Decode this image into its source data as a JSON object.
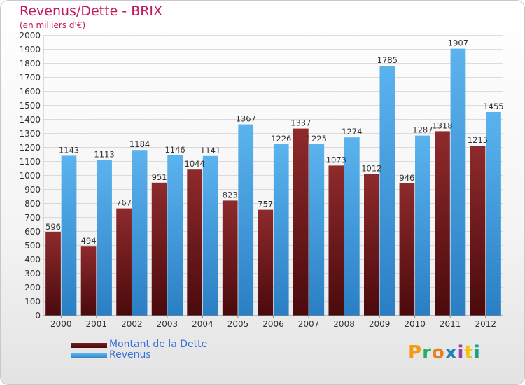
{
  "title": "Revenus/Dette - BRIX",
  "subtitle": "(en milliers d'€)",
  "colors": {
    "dette": "#7a1f22",
    "revenus": "#3a9fe6",
    "grid": "#bdbdbd",
    "text": "#333333"
  },
  "legend": {
    "dette": "Montant de la Dette",
    "revenus": "Revenus"
  },
  "logo": "Proxiti",
  "chart_data": {
    "type": "bar",
    "categories": [
      "2000",
      "2001",
      "2002",
      "2003",
      "2004",
      "2005",
      "2006",
      "2007",
      "2008",
      "2009",
      "2010",
      "2011",
      "2012"
    ],
    "series": [
      {
        "name": "Montant de la Dette",
        "values": [
          596,
          494,
          767,
          951,
          1044,
          823,
          757,
          1337,
          1073,
          1012,
          946,
          1318,
          1215
        ]
      },
      {
        "name": "Revenus",
        "values": [
          1143,
          1113,
          1184,
          1146,
          1141,
          1367,
          1226,
          1225,
          1274,
          1785,
          1287,
          1907,
          1455
        ]
      }
    ],
    "ylim": [
      0,
      2000
    ],
    "yticks": [
      0,
      100,
      200,
      300,
      400,
      500,
      600,
      700,
      800,
      900,
      1000,
      1100,
      1200,
      1300,
      1400,
      1500,
      1600,
      1700,
      1800,
      1900,
      2000
    ],
    "xlabel": "",
    "ylabel": "",
    "grid": true,
    "legend_position": "bottom-left"
  }
}
